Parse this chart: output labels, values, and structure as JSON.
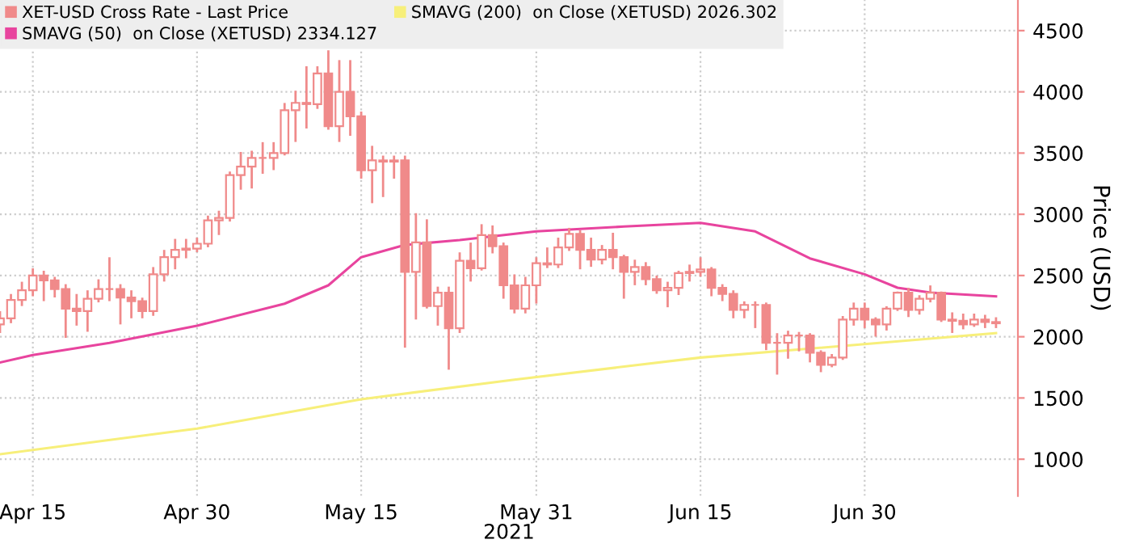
{
  "chart_data": {
    "type": "candlestick",
    "xlabel": "2021",
    "ylabel": "Price (USD)",
    "xlim": [
      "2021-04-12",
      "2021-07-14"
    ],
    "xticks": [
      {
        "value": "2021-04-15",
        "label": "Apr 15"
      },
      {
        "value": "2021-04-30",
        "label": "Apr 30"
      },
      {
        "value": "2021-05-15",
        "label": "May 15"
      },
      {
        "value": "2021-05-31",
        "label": "May 31"
      },
      {
        "value": "2021-06-15",
        "label": "Jun 15"
      },
      {
        "value": "2021-06-30",
        "label": "Jun 30"
      }
    ],
    "ylim": [
      700,
      4750
    ],
    "yticks": [
      1000,
      1500,
      2000,
      2500,
      3000,
      3500,
      4000,
      4500
    ],
    "grid": true,
    "legend": "top left",
    "series": [
      {
        "name": "XET-USD Cross Rate - Last Price",
        "color": "#f08a8a",
        "x": [
          "2021-04-12",
          "2021-04-13",
          "2021-04-14",
          "2021-04-15",
          "2021-04-16",
          "2021-04-17",
          "2021-04-18",
          "2021-04-19",
          "2021-04-20",
          "2021-04-21",
          "2021-04-22",
          "2021-04-23",
          "2021-04-24",
          "2021-04-25",
          "2021-04-26",
          "2021-04-27",
          "2021-04-28",
          "2021-04-29",
          "2021-04-30",
          "2021-05-01",
          "2021-05-02",
          "2021-05-03",
          "2021-05-04",
          "2021-05-05",
          "2021-05-06",
          "2021-05-07",
          "2021-05-08",
          "2021-05-09",
          "2021-05-10",
          "2021-05-11",
          "2021-05-12",
          "2021-05-13",
          "2021-05-14",
          "2021-05-15",
          "2021-05-16",
          "2021-05-17",
          "2021-05-18",
          "2021-05-19",
          "2021-05-20",
          "2021-05-21",
          "2021-05-22",
          "2021-05-23",
          "2021-05-24",
          "2021-05-25",
          "2021-05-26",
          "2021-05-27",
          "2021-05-28",
          "2021-05-29",
          "2021-05-30",
          "2021-05-31",
          "2021-06-01",
          "2021-06-02",
          "2021-06-03",
          "2021-06-04",
          "2021-06-05",
          "2021-06-06",
          "2021-06-07",
          "2021-06-08",
          "2021-06-09",
          "2021-06-10",
          "2021-06-11",
          "2021-06-12",
          "2021-06-13",
          "2021-06-14",
          "2021-06-15",
          "2021-06-16",
          "2021-06-17",
          "2021-06-18",
          "2021-06-19",
          "2021-06-20",
          "2021-06-21",
          "2021-06-22",
          "2021-06-23",
          "2021-06-24",
          "2021-06-25",
          "2021-06-26",
          "2021-06-27",
          "2021-06-28",
          "2021-06-29",
          "2021-06-30",
          "2021-07-01",
          "2021-07-02",
          "2021-07-03",
          "2021-07-04",
          "2021-07-05",
          "2021-07-06",
          "2021-07-07",
          "2021-07-08",
          "2021-07-09",
          "2021-07-10",
          "2021-07-11",
          "2021-07-12"
        ],
        "ohlc": [
          [
            2100,
            2200,
            2040,
            2150
          ],
          [
            2150,
            2340,
            2120,
            2300
          ],
          [
            2300,
            2440,
            2260,
            2380
          ],
          [
            2380,
            2550,
            2340,
            2500
          ],
          [
            2500,
            2530,
            2300,
            2460
          ],
          [
            2460,
            2480,
            2330,
            2390
          ],
          [
            2390,
            2420,
            2000,
            2230
          ],
          [
            2230,
            2340,
            2100,
            2210
          ],
          [
            2210,
            2370,
            2050,
            2310
          ],
          [
            2310,
            2460,
            2290,
            2390
          ],
          [
            2390,
            2640,
            2300,
            2390
          ],
          [
            2390,
            2420,
            2110,
            2320
          ],
          [
            2320,
            2370,
            2160,
            2290
          ],
          [
            2290,
            2310,
            2160,
            2210
          ],
          [
            2210,
            2560,
            2180,
            2510
          ],
          [
            2510,
            2700,
            2460,
            2650
          ],
          [
            2650,
            2790,
            2560,
            2710
          ],
          [
            2710,
            2790,
            2650,
            2720
          ],
          [
            2720,
            2800,
            2700,
            2760
          ],
          [
            2760,
            2980,
            2740,
            2950
          ],
          [
            2950,
            3020,
            2840,
            2970
          ],
          [
            2970,
            3340,
            2950,
            3320
          ],
          [
            3320,
            3500,
            3210,
            3390
          ],
          [
            3390,
            3510,
            3220,
            3460
          ],
          [
            3460,
            3580,
            3340,
            3460
          ],
          [
            3460,
            3580,
            3370,
            3500
          ],
          [
            3500,
            3900,
            3490,
            3850
          ],
          [
            3850,
            4000,
            3600,
            3910
          ],
          [
            3910,
            4200,
            3710,
            3900
          ],
          [
            3900,
            4200,
            3870,
            4150
          ],
          [
            4150,
            4330,
            3700,
            3720
          ],
          [
            3720,
            4250,
            3600,
            4000
          ],
          [
            4000,
            4250,
            3650,
            3800
          ],
          [
            3800,
            3830,
            3300,
            3360
          ],
          [
            3360,
            3550,
            3100,
            3440
          ],
          [
            3440,
            3470,
            3150,
            3430
          ],
          [
            3430,
            3470,
            3300,
            3440
          ],
          [
            3440,
            3470,
            1920,
            2530
          ],
          [
            2530,
            3000,
            2150,
            2770
          ],
          [
            2770,
            2950,
            2240,
            2250
          ],
          [
            2250,
            2400,
            2100,
            2360
          ],
          [
            2360,
            2400,
            1740,
            2070
          ],
          [
            2070,
            2680,
            2040,
            2620
          ],
          [
            2620,
            2760,
            2460,
            2560
          ],
          [
            2560,
            2910,
            2550,
            2830
          ],
          [
            2830,
            2900,
            2690,
            2740
          ],
          [
            2740,
            2760,
            2320,
            2420
          ],
          [
            2420,
            2500,
            2200,
            2230
          ],
          [
            2230,
            2480,
            2200,
            2420
          ],
          [
            2420,
            2640,
            2280,
            2600
          ],
          [
            2600,
            2720,
            2570,
            2590
          ],
          [
            2590,
            2800,
            2570,
            2730
          ],
          [
            2730,
            2880,
            2710,
            2840
          ],
          [
            2840,
            2860,
            2560,
            2710
          ],
          [
            2710,
            2800,
            2580,
            2630
          ],
          [
            2630,
            2740,
            2600,
            2710
          ],
          [
            2710,
            2840,
            2560,
            2650
          ],
          [
            2650,
            2660,
            2320,
            2530
          ],
          [
            2530,
            2620,
            2430,
            2570
          ],
          [
            2570,
            2600,
            2430,
            2470
          ],
          [
            2470,
            2490,
            2360,
            2380
          ],
          [
            2380,
            2440,
            2250,
            2400
          ],
          [
            2400,
            2530,
            2350,
            2520
          ],
          [
            2520,
            2580,
            2460,
            2530
          ],
          [
            2530,
            2640,
            2500,
            2550
          ],
          [
            2550,
            2560,
            2340,
            2400
          ],
          [
            2400,
            2420,
            2300,
            2350
          ],
          [
            2350,
            2370,
            2160,
            2220
          ],
          [
            2220,
            2280,
            2160,
            2260
          ],
          [
            2260,
            2280,
            2080,
            2260
          ],
          [
            2260,
            2270,
            1900,
            1950
          ],
          [
            1950,
            2020,
            1700,
            1950
          ],
          [
            1950,
            2040,
            1830,
            2010
          ],
          [
            2010,
            2030,
            1890,
            2010
          ],
          [
            2010,
            2020,
            1800,
            1870
          ],
          [
            1870,
            1880,
            1720,
            1770
          ],
          [
            1770,
            1850,
            1760,
            1830
          ],
          [
            1830,
            2160,
            1820,
            2140
          ],
          [
            2140,
            2270,
            2100,
            2230
          ],
          [
            2230,
            2270,
            2080,
            2140
          ],
          [
            2140,
            2150,
            2010,
            2100
          ],
          [
            2100,
            2240,
            2060,
            2230
          ],
          [
            2230,
            2360,
            2220,
            2360
          ],
          [
            2360,
            2390,
            2170,
            2220
          ],
          [
            2220,
            2330,
            2190,
            2310
          ],
          [
            2310,
            2410,
            2290,
            2360
          ],
          [
            2360,
            2360,
            2130,
            2140
          ],
          [
            2140,
            2190,
            2040,
            2130
          ],
          [
            2130,
            2180,
            2070,
            2100
          ],
          [
            2100,
            2180,
            2090,
            2140
          ],
          [
            2140,
            2170,
            2080,
            2120
          ],
          [
            2120,
            2150,
            2080,
            2110
          ]
        ]
      },
      {
        "name": "SMAVG (50)  on Close (XETUSD) 2334.127",
        "type": "line",
        "color": "#e8449e",
        "x": [
          "2021-04-12",
          "2021-04-15",
          "2021-04-22",
          "2021-04-30",
          "2021-05-08",
          "2021-05-12",
          "2021-05-15",
          "2021-05-19",
          "2021-05-24",
          "2021-05-31",
          "2021-06-08",
          "2021-06-15",
          "2021-06-20",
          "2021-06-25",
          "2021-06-30",
          "2021-07-03",
          "2021-07-06",
          "2021-07-12"
        ],
        "values": [
          1790,
          1850,
          1950,
          2090,
          2270,
          2420,
          2650,
          2750,
          2790,
          2860,
          2900,
          2930,
          2860,
          2640,
          2510,
          2400,
          2360,
          2330
        ]
      },
      {
        "name": "SMAVG (200)  on Close (XETUSD) 2026.302",
        "type": "line",
        "color": "#f7ef7a",
        "x": [
          "2021-04-12",
          "2021-04-30",
          "2021-05-15",
          "2021-05-29",
          "2021-06-15",
          "2021-06-30",
          "2021-07-12"
        ],
        "values": [
          1040,
          1250,
          1490,
          1650,
          1830,
          1940,
          2030
        ]
      }
    ]
  }
}
